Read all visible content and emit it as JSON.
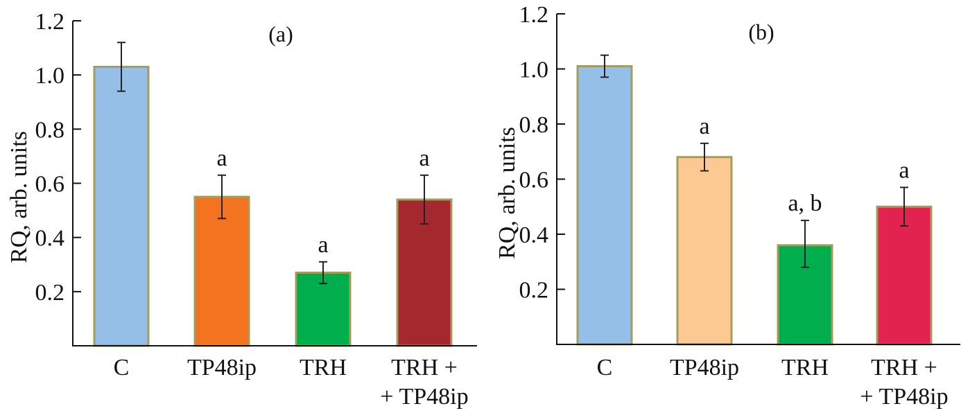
{
  "chart_data": [
    {
      "type": "bar",
      "title": "(a)",
      "xlabel": "",
      "ylabel": "RQ, arb. units",
      "ylim": [
        0,
        1.2
      ],
      "yticks": [
        "0.2",
        "0.4",
        "0.6",
        "0.8",
        "1.0",
        "1.2"
      ],
      "ytick_values": [
        0.2,
        0.4,
        0.6,
        0.8,
        1.0,
        1.2
      ],
      "categories": [
        [
          "C"
        ],
        [
          "TP48ip"
        ],
        [
          "TRH"
        ],
        [
          "TRH +",
          "+ TP48ip"
        ]
      ],
      "values": [
        1.03,
        0.55,
        0.27,
        0.54
      ],
      "error_low": [
        0.94,
        0.47,
        0.23,
        0.45
      ],
      "error_high": [
        1.12,
        0.63,
        0.31,
        0.63
      ],
      "annotations": [
        "",
        "a",
        "a",
        "a"
      ],
      "colors": [
        "#95bfe7",
        "#f47321",
        "#00ae4d",
        "#a5282e"
      ],
      "edge_color": "#a59c5a",
      "grid": false
    },
    {
      "type": "bar",
      "title": "(b)",
      "xlabel": "",
      "ylabel": "RQ, arb. units",
      "ylim": [
        0,
        1.2
      ],
      "yticks": [
        "0.2",
        "0.4",
        "0.6",
        "0.8",
        "1.0",
        "1.2"
      ],
      "ytick_values": [
        0.2,
        0.4,
        0.6,
        0.8,
        1.0,
        1.2
      ],
      "categories": [
        [
          "C"
        ],
        [
          "TP48ip"
        ],
        [
          "TRH"
        ],
        [
          "TRH +",
          "+ TP48ip"
        ]
      ],
      "values": [
        1.01,
        0.68,
        0.36,
        0.5
      ],
      "error_low": [
        0.97,
        0.63,
        0.28,
        0.43
      ],
      "error_high": [
        1.05,
        0.73,
        0.45,
        0.57
      ],
      "annotations": [
        "",
        "a",
        "a, b",
        "a"
      ],
      "colors": [
        "#95bfe7",
        "#fdc993",
        "#00ae4d",
        "#e2224f"
      ],
      "edge_color": "#a59c5a",
      "grid": false
    }
  ]
}
